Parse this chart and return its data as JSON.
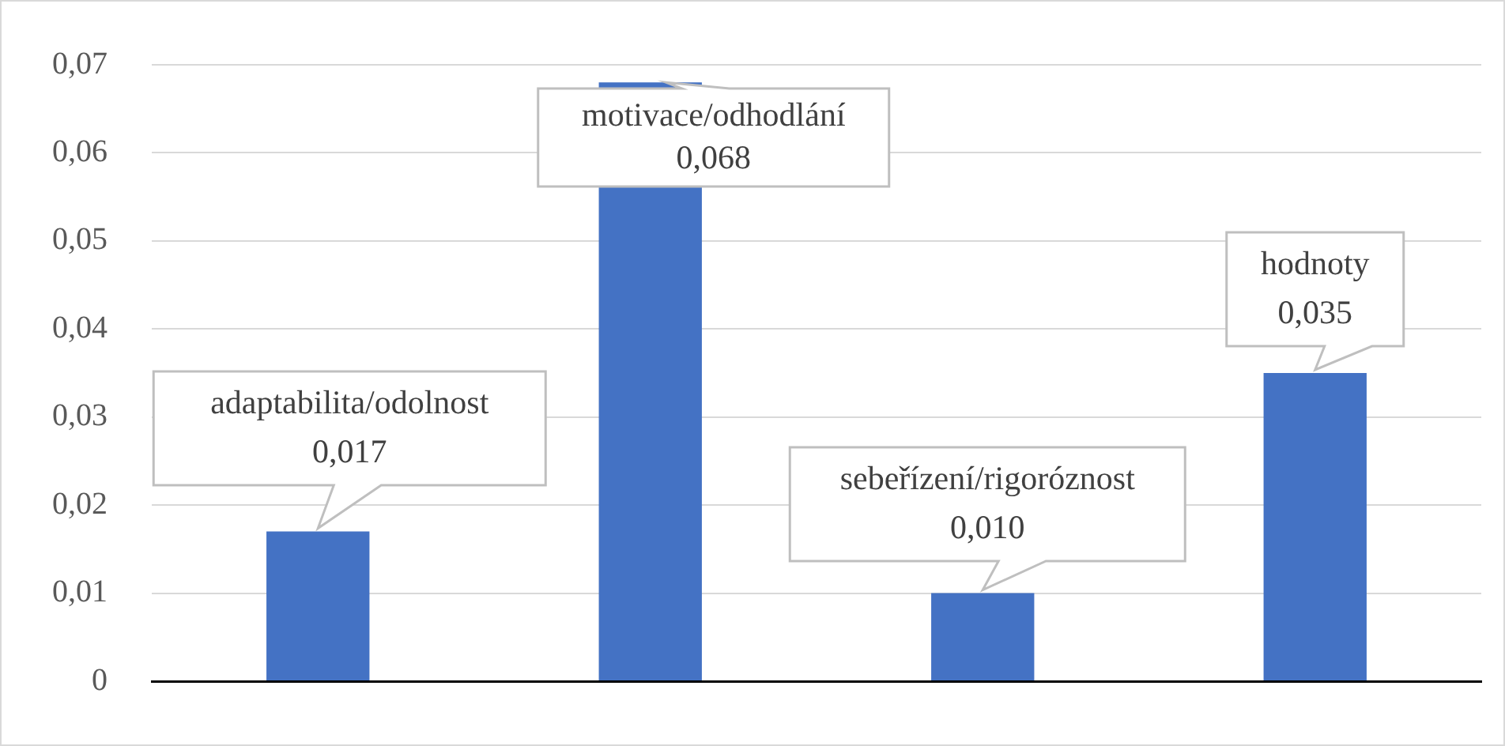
{
  "chart_data": {
    "type": "bar",
    "categories": [
      "adaptabilita/odolnost",
      "motivace/odhodlání",
      "sebeřízení/rigoróznost",
      "hodnoty"
    ],
    "values": [
      0.017,
      0.068,
      0.01,
      0.035
    ],
    "value_labels": [
      "0,017",
      "0,068",
      "0,010",
      "0,035"
    ],
    "color": "#4472c4",
    "ylim": [
      0,
      0.07
    ],
    "yticks": [
      0,
      {
        "value": 0.01,
        "label": "0,01"
      },
      {
        "value": 0.02,
        "label": "0,02"
      },
      {
        "value": 0.03,
        "label": "0,03"
      },
      {
        "value": 0.04,
        "label": "0,04"
      },
      {
        "value": 0.05,
        "label": "0,05"
      },
      {
        "value": 0.06,
        "label": "0,06"
      },
      {
        "value": 0.07,
        "label": "0,07"
      }
    ],
    "grid": "y",
    "legend": false,
    "tick_labels": "y"
  }
}
